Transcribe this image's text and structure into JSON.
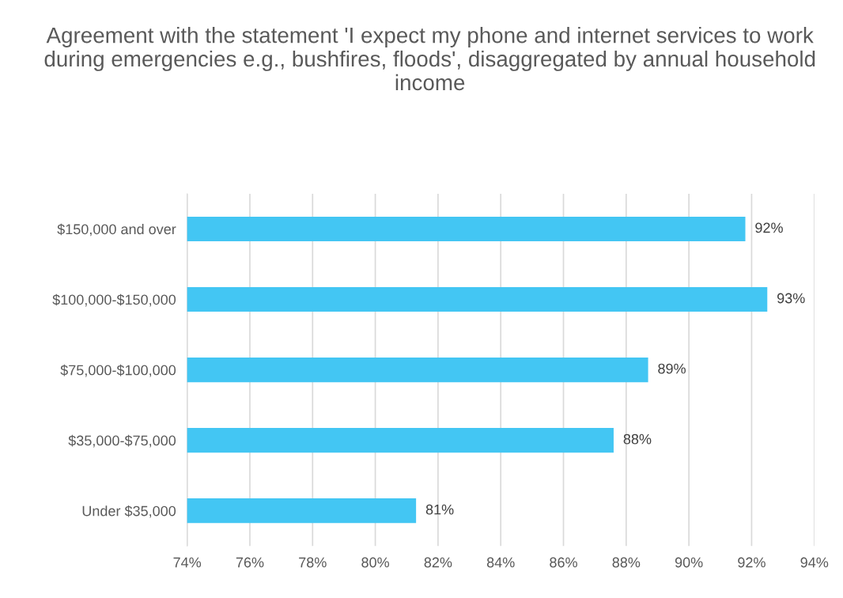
{
  "chart_data": {
    "type": "bar",
    "orientation": "horizontal",
    "title": "Agreement with the statement 'I expect my phone and internet services to work during emergencies e.g., bushfires, floods', disaggregated by annual household income",
    "categories": [
      "$150,000 and over",
      "$100,000-$150,000",
      "$75,000-$100,000",
      "$35,000-$75,000",
      "Under $35,000"
    ],
    "values": [
      91.8,
      92.5,
      88.7,
      87.6,
      81.3
    ],
    "value_labels": [
      "92%",
      "93%",
      "89%",
      "88%",
      "81%"
    ],
    "color": "#43c6f3",
    "xlim": [
      74,
      94
    ],
    "xticks": [
      {
        "value": 74,
        "label": "74%"
      },
      {
        "value": 76,
        "label": "76%"
      },
      {
        "value": 78,
        "label": "78%"
      },
      {
        "value": 80,
        "label": "80%"
      },
      {
        "value": 82,
        "label": "82%"
      },
      {
        "value": 84,
        "label": "84%"
      },
      {
        "value": 86,
        "label": "86%"
      },
      {
        "value": 88,
        "label": "88%"
      },
      {
        "value": 90,
        "label": "90%"
      },
      {
        "value": 92,
        "label": "92%"
      },
      {
        "value": 94,
        "label": "94%"
      }
    ],
    "grid": "x"
  }
}
